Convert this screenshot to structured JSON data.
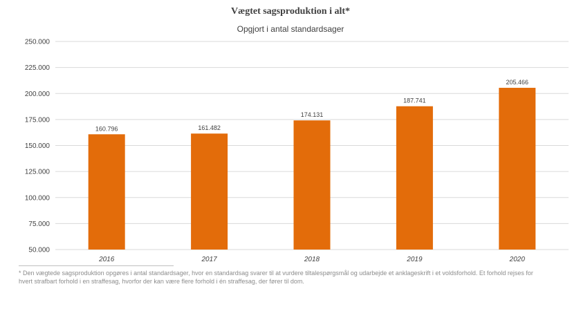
{
  "chart_data": {
    "type": "bar",
    "title": "Vægtet sagsproduktion i alt*",
    "subtitle": "Opgjort i antal standardsager",
    "categories": [
      "2016",
      "2017",
      "2018",
      "2019",
      "2020"
    ],
    "values": [
      160796,
      161482,
      174131,
      187741,
      205466
    ],
    "value_labels": [
      "160.796",
      "161.482",
      "174.131",
      "187.741",
      "205.466"
    ],
    "ylim": [
      50000,
      250000
    ],
    "yticks": [
      50000,
      75000,
      100000,
      125000,
      150000,
      175000,
      200000,
      225000,
      250000
    ],
    "ytick_labels": [
      "50.000",
      "75.000",
      "100.000",
      "125.000",
      "150.000",
      "175.000",
      "200.000",
      "225.000",
      "250.000"
    ],
    "grid": true,
    "bar_color": "#e36c0a",
    "grid_color": "#d9d9d9"
  },
  "footnote": "* Den vægtede sagsproduktion opgøres i antal standardsager, hvor en standardsag svarer til at vurdere tiltalespørgsmål og udarbejde et anklageskrift i et voldsforhold. Et forhold rejses for hvert strafbart forhold i en straffesag, hvorfor der kan være flere forhold i én straffesag, der fører til dom."
}
